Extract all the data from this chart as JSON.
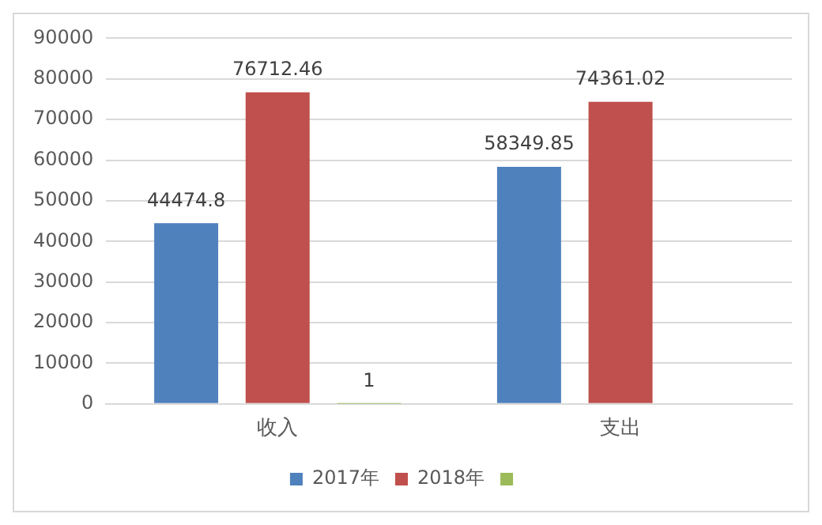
{
  "chart_data": {
    "type": "bar",
    "categories": [
      "收入",
      "支出"
    ],
    "series": [
      {
        "name": "2017年",
        "color": "#4f81bd",
        "values": [
          44474.8,
          58349.85
        ]
      },
      {
        "name": "2018年",
        "color": "#c0504d",
        "values": [
          76712.46,
          74361.02
        ]
      },
      {
        "color": "#9bbb59",
        "values": [
          1,
          null
        ]
      }
    ],
    "ylim": [
      0,
      90000
    ],
    "yticks": [
      0,
      10000,
      20000,
      30000,
      40000,
      50000,
      60000,
      70000,
      80000,
      90000
    ],
    "grid": "y",
    "legend": "bottom",
    "data_labels": true
  }
}
